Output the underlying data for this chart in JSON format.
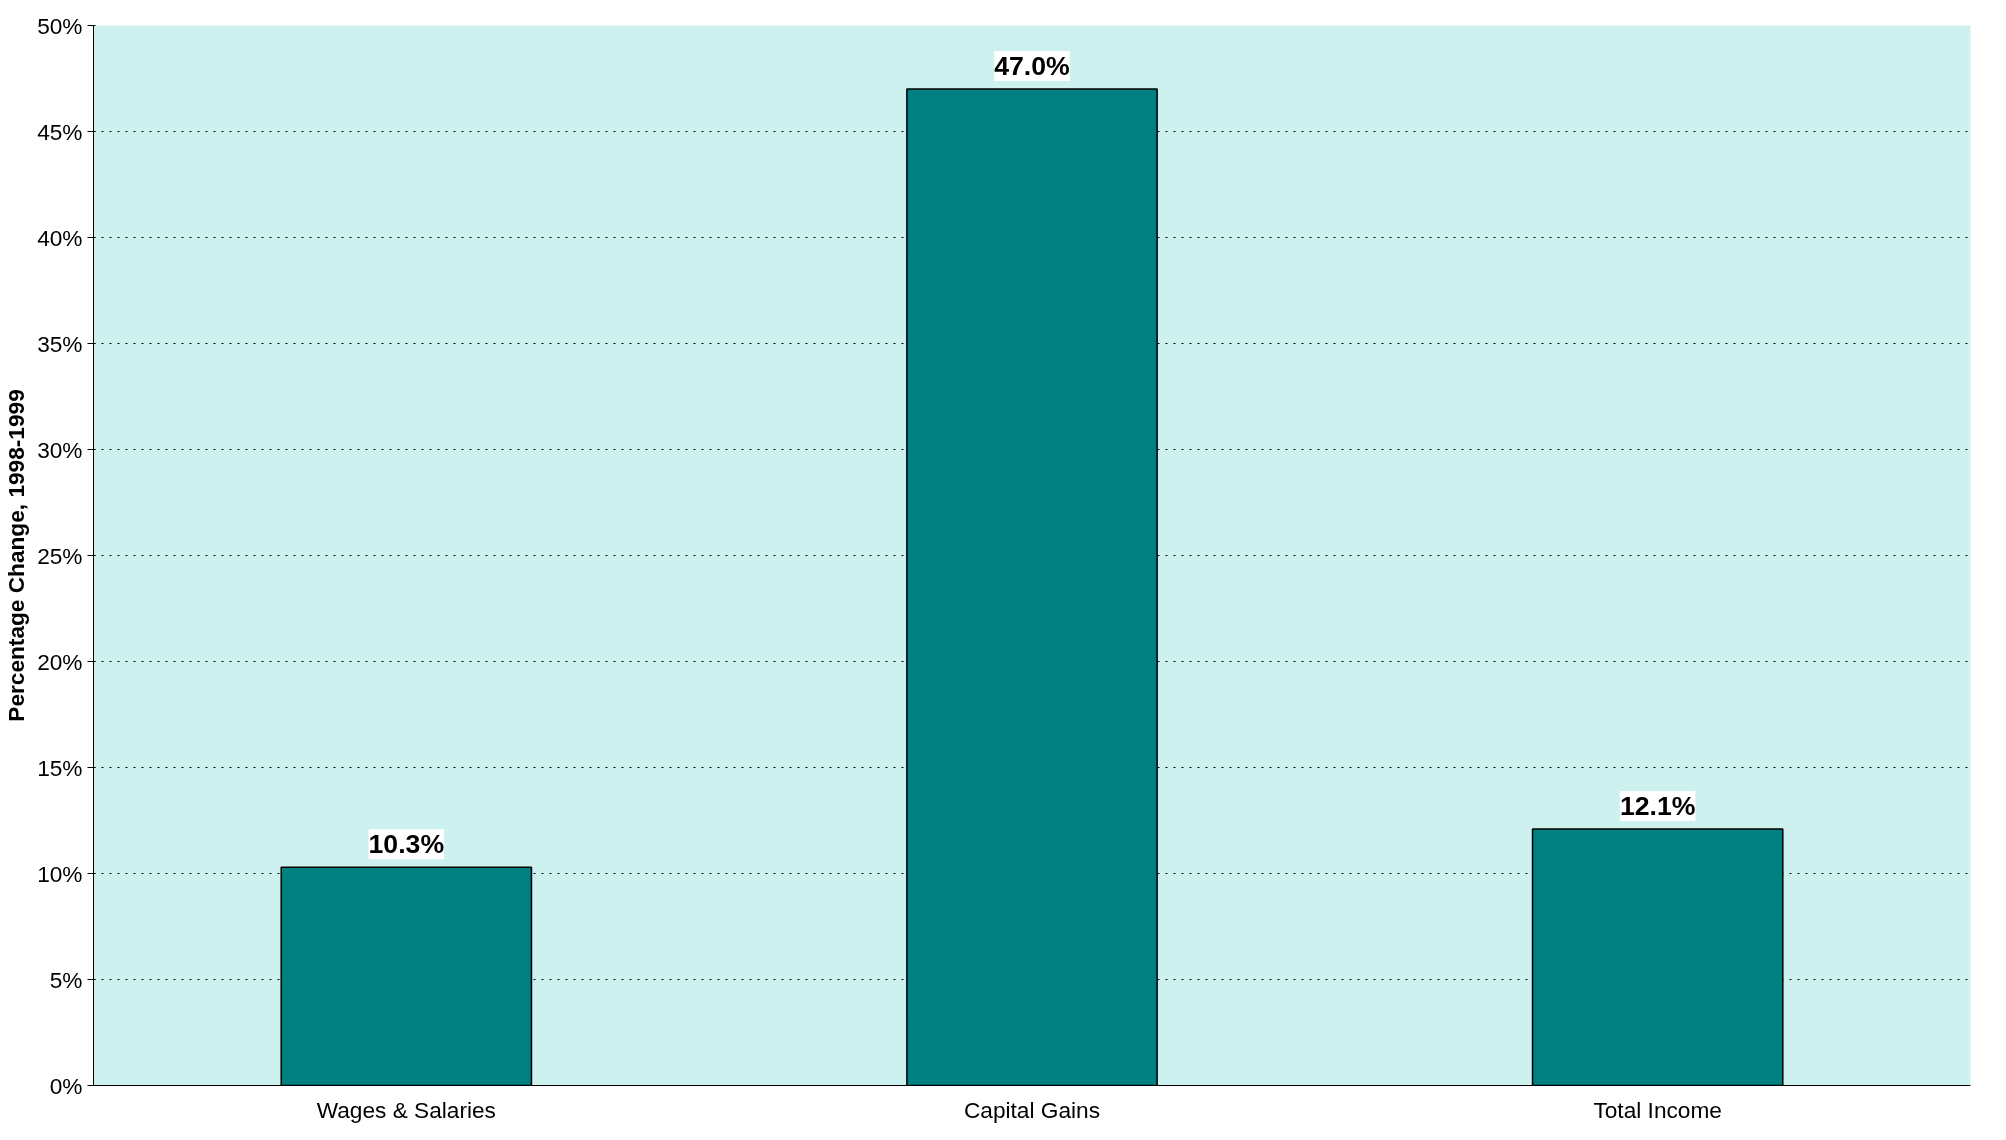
{
  "chart_data": {
    "type": "bar",
    "ylabel": "Percentage Change, 1998-1999",
    "categories": [
      "Wages & Salaries",
      "Capital Gains",
      "Total Income"
    ],
    "values": [
      10.3,
      47.0,
      12.1
    ],
    "value_labels": [
      "10.3%",
      "47.0%",
      "12.1%"
    ],
    "color": "#008080",
    "ylim": [
      0,
      50
    ],
    "yticks": [
      {
        "value": 0,
        "label": "0%"
      },
      {
        "value": 5,
        "label": "5%"
      },
      {
        "value": 10,
        "label": "10%"
      },
      {
        "value": 15,
        "label": "15%"
      },
      {
        "value": 20,
        "label": "20%"
      },
      {
        "value": 25,
        "label": "25%"
      },
      {
        "value": 30,
        "label": "30%"
      },
      {
        "value": 35,
        "label": "35%"
      },
      {
        "value": 40,
        "label": "40%"
      },
      {
        "value": 45,
        "label": "45%"
      },
      {
        "value": 50,
        "label": "50%"
      }
    ],
    "grid": "y"
  }
}
